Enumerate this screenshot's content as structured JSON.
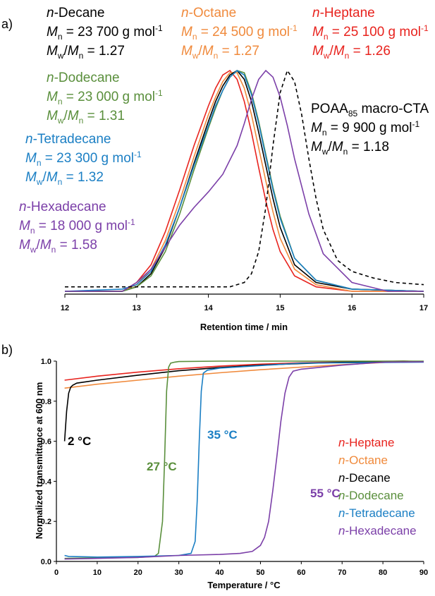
{
  "chart_data": [
    {
      "panel": "a)",
      "type": "line",
      "xlabel": "Retention time / min",
      "ylabel": "",
      "xlim": [
        12,
        17
      ],
      "xticks": [
        "12",
        "13",
        "14",
        "15",
        "16",
        "17"
      ],
      "series": [
        {
          "name": "n-Heptane",
          "color": "#e8231e",
          "dashed": false,
          "x": [
            12.0,
            12.8,
            13.0,
            13.2,
            13.4,
            13.6,
            13.8,
            14.0,
            14.1,
            14.2,
            14.3,
            14.4,
            14.5,
            14.6,
            14.7,
            14.8,
            14.9,
            15.0,
            15.2,
            15.5,
            16.0,
            17.0
          ],
          "y": [
            0.0,
            0.0,
            0.04,
            0.12,
            0.27,
            0.46,
            0.66,
            0.84,
            0.92,
            0.98,
            1.0,
            0.96,
            0.86,
            0.72,
            0.56,
            0.41,
            0.28,
            0.18,
            0.07,
            0.02,
            0.0,
            0.0
          ]
        },
        {
          "name": "n-Octane",
          "color": "#f08a3c",
          "dashed": false,
          "x": [
            12.0,
            12.8,
            13.0,
            13.2,
            13.4,
            13.6,
            13.8,
            14.0,
            14.1,
            14.2,
            14.3,
            14.4,
            14.5,
            14.6,
            14.7,
            14.8,
            14.9,
            15.0,
            15.2,
            15.5,
            16.0,
            17.0
          ],
          "y": [
            0.0,
            0.0,
            0.03,
            0.1,
            0.23,
            0.41,
            0.61,
            0.8,
            0.88,
            0.95,
            0.99,
            0.99,
            0.92,
            0.8,
            0.65,
            0.5,
            0.36,
            0.24,
            0.1,
            0.03,
            0.0,
            0.0
          ]
        },
        {
          "name": "n-Decane",
          "color": "#000000",
          "dashed": false,
          "x": [
            12.0,
            12.8,
            13.0,
            13.2,
            13.4,
            13.6,
            13.8,
            14.0,
            14.1,
            14.2,
            14.3,
            14.4,
            14.5,
            14.6,
            14.7,
            14.8,
            14.9,
            15.0,
            15.2,
            15.5,
            16.0,
            17.0
          ],
          "y": [
            0.0,
            0.0,
            0.02,
            0.08,
            0.2,
            0.38,
            0.58,
            0.77,
            0.86,
            0.93,
            0.98,
            1.0,
            0.96,
            0.86,
            0.72,
            0.57,
            0.42,
            0.29,
            0.12,
            0.04,
            0.01,
            0.0
          ]
        },
        {
          "name": "n-Dodecane",
          "color": "#5a8f3c",
          "dashed": false,
          "x": [
            12.0,
            12.8,
            13.0,
            13.2,
            13.4,
            13.6,
            13.8,
            14.0,
            14.1,
            14.2,
            14.3,
            14.4,
            14.5,
            14.6,
            14.7,
            14.8,
            14.9,
            15.0,
            15.2,
            15.5,
            16.0,
            17.0
          ],
          "y": [
            0.0,
            0.0,
            0.02,
            0.07,
            0.18,
            0.35,
            0.55,
            0.74,
            0.83,
            0.91,
            0.97,
            1.0,
            0.99,
            0.9,
            0.77,
            0.62,
            0.47,
            0.34,
            0.15,
            0.05,
            0.01,
            0.0
          ]
        },
        {
          "name": "n-Tetradecane",
          "color": "#1b7fc4",
          "dashed": false,
          "x": [
            12.0,
            12.8,
            13.0,
            13.2,
            13.4,
            13.6,
            13.8,
            14.0,
            14.1,
            14.2,
            14.3,
            14.4,
            14.5,
            14.6,
            14.7,
            14.8,
            14.9,
            15.0,
            15.2,
            15.5,
            16.0,
            17.0
          ],
          "y": [
            0.0,
            0.01,
            0.03,
            0.09,
            0.21,
            0.38,
            0.57,
            0.75,
            0.84,
            0.91,
            0.97,
            1.0,
            0.98,
            0.89,
            0.76,
            0.61,
            0.46,
            0.33,
            0.15,
            0.05,
            0.01,
            0.0
          ]
        },
        {
          "name": "n-Hexadecane",
          "color": "#7b3fa8",
          "dashed": false,
          "x": [
            12.0,
            12.8,
            13.0,
            13.2,
            13.4,
            13.6,
            13.8,
            14.0,
            14.2,
            14.4,
            14.5,
            14.6,
            14.7,
            14.8,
            14.9,
            15.0,
            15.1,
            15.2,
            15.4,
            15.6,
            16.0,
            16.5,
            17.0
          ],
          "y": [
            0.0,
            0.0,
            0.04,
            0.1,
            0.2,
            0.3,
            0.38,
            0.45,
            0.53,
            0.66,
            0.76,
            0.87,
            0.96,
            1.0,
            0.97,
            0.88,
            0.75,
            0.6,
            0.35,
            0.17,
            0.04,
            0.0,
            0.0
          ]
        },
        {
          "name": "POAA85 macro-CTA",
          "color": "#000000",
          "dashed": true,
          "x": [
            12.0,
            14.0,
            14.3,
            14.5,
            14.6,
            14.7,
            14.8,
            14.9,
            15.0,
            15.1,
            15.2,
            15.3,
            15.4,
            15.5,
            15.6,
            15.8,
            16.0,
            16.3,
            16.6,
            17.0
          ],
          "y": [
            0.02,
            0.02,
            0.02,
            0.04,
            0.08,
            0.18,
            0.38,
            0.66,
            0.9,
            1.0,
            0.95,
            0.8,
            0.6,
            0.42,
            0.28,
            0.14,
            0.09,
            0.06,
            0.04,
            0.03
          ]
        }
      ],
      "annotations": [
        {
          "color": "#000000",
          "name": [
            "n",
            "-Decane"
          ],
          "mn": "23 700",
          "disp": "1.27"
        },
        {
          "color": "#f08a3c",
          "name": [
            "n",
            "-Octane"
          ],
          "mn": "24 500",
          "disp": "1.27"
        },
        {
          "color": "#e8231e",
          "name": [
            "n",
            "-Heptane"
          ],
          "mn": "25 100",
          "disp": "1.26"
        },
        {
          "color": "#5a8f3c",
          "name": [
            "n",
            "-Dodecane"
          ],
          "mn": "23 000",
          "disp": "1.31"
        },
        {
          "color": "#000000",
          "name": [
            "",
            "POAA"
          ],
          "sub": "85",
          "suffix": " macro-CTA",
          "mn": "9 900",
          "disp": "1.18"
        },
        {
          "color": "#1b7fc4",
          "name": [
            "n",
            "-Tetradecane"
          ],
          "mn": "23 300",
          "disp": "1.32"
        },
        {
          "color": "#7b3fa8",
          "name": [
            "n",
            "-Hexadecane"
          ],
          "mn": "18 000",
          "disp": "1.58"
        }
      ],
      "text": {
        "mn_prefix": "M",
        "mn_sub": "n",
        "eq": " = ",
        "unit": " g mol",
        "unit_sup": "-1",
        "mw": "M",
        "mw_sub": "w",
        "slash": "/"
      }
    },
    {
      "panel": "b)",
      "type": "line",
      "xlabel": "Temperature / °C",
      "ylabel": "Normalized transmittance at 600 nm",
      "xlim": [
        0,
        90
      ],
      "ylim": [
        0,
        1.0
      ],
      "xticks": [
        "0",
        "10",
        "20",
        "30",
        "40",
        "50",
        "60",
        "70",
        "80",
        "90"
      ],
      "yticks": [
        "0.0",
        "0.2",
        "0.4",
        "0.6",
        "0.8",
        "1.0"
      ],
      "series": [
        {
          "name": "n-Heptane",
          "color": "#e8231e",
          "x": [
            2,
            10,
            20,
            30,
            40,
            50,
            60,
            70,
            80,
            85,
            90
          ],
          "y": [
            0.905,
            0.925,
            0.945,
            0.962,
            0.975,
            0.985,
            0.992,
            0.996,
            0.999,
            1.0,
            0.998
          ]
        },
        {
          "name": "n-Octane",
          "color": "#f08a3c",
          "x": [
            2,
            10,
            20,
            30,
            40,
            50,
            60,
            70,
            80,
            85,
            90
          ],
          "y": [
            0.865,
            0.885,
            0.905,
            0.925,
            0.942,
            0.957,
            0.97,
            0.982,
            0.993,
            1.0,
            0.997
          ]
        },
        {
          "name": "n-Decane",
          "color": "#000000",
          "x": [
            2,
            2.5,
            3,
            3.5,
            4,
            5,
            10,
            20,
            30,
            40,
            50,
            60,
            70,
            80,
            85,
            90
          ],
          "y": [
            0.6,
            0.75,
            0.84,
            0.87,
            0.88,
            0.89,
            0.905,
            0.93,
            0.952,
            0.968,
            0.98,
            0.988,
            0.994,
            0.998,
            1.0,
            0.997
          ]
        },
        {
          "name": "n-Dodecane",
          "color": "#5a8f3c",
          "x": [
            2,
            10,
            20,
            24,
            25,
            26,
            26.5,
            27,
            27.5,
            28,
            29,
            30,
            40,
            60,
            90
          ],
          "y": [
            0.015,
            0.018,
            0.02,
            0.025,
            0.04,
            0.2,
            0.5,
            0.85,
            0.97,
            0.99,
            0.995,
            0.998,
            1.0,
            1.0,
            1.0
          ]
        },
        {
          "name": "n-Tetradecane",
          "color": "#1b7fc4",
          "x": [
            2,
            3,
            10,
            20,
            30,
            33,
            34,
            34.5,
            35,
            35.5,
            36,
            37,
            40,
            60,
            90
          ],
          "y": [
            0.03,
            0.025,
            0.022,
            0.025,
            0.03,
            0.04,
            0.1,
            0.3,
            0.6,
            0.85,
            0.94,
            0.955,
            0.965,
            0.99,
            0.995
          ]
        },
        {
          "name": "n-Hexadecane",
          "color": "#7b3fa8",
          "x": [
            2,
            10,
            20,
            30,
            40,
            45,
            48,
            50,
            51,
            52,
            53,
            54,
            55,
            56,
            57,
            58,
            60,
            70,
            80,
            90
          ],
          "y": [
            0.012,
            0.015,
            0.02,
            0.03,
            0.035,
            0.04,
            0.05,
            0.08,
            0.12,
            0.2,
            0.35,
            0.52,
            0.7,
            0.84,
            0.92,
            0.95,
            0.96,
            0.98,
            0.995,
            0.997
          ]
        }
      ],
      "temperature_labels": [
        {
          "text": "2 °C",
          "color": "#000000"
        },
        {
          "text": "27 °C",
          "color": "#5a8f3c"
        },
        {
          "text": "35 °C",
          "color": "#1b7fc4"
        },
        {
          "text": "55 °C",
          "color": "#7b3fa8"
        }
      ],
      "legend": [
        {
          "italic": "n",
          "rest": "-Heptane",
          "color": "#e8231e"
        },
        {
          "italic": "n",
          "rest": "-Octane",
          "color": "#f08a3c"
        },
        {
          "italic": "n",
          "rest": "-Decane",
          "color": "#000000"
        },
        {
          "italic": "n",
          "rest": "-Dodecane",
          "color": "#5a8f3c"
        },
        {
          "italic": "n",
          "rest": "-Tetradecane",
          "color": "#1b7fc4"
        },
        {
          "italic": "n",
          "rest": "-Hexadecane",
          "color": "#7b3fa8"
        }
      ]
    }
  ]
}
